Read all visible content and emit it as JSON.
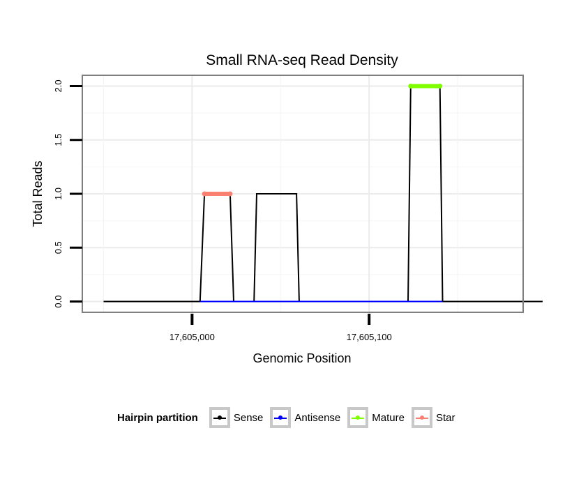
{
  "chart_data": {
    "type": "line",
    "title": "Small RNA-seq Read Density",
    "xlabel": "Genomic Position",
    "ylabel": "Total Reads",
    "xlim": [
      17604938,
      17605187
    ],
    "ylim": [
      -0.1,
      2.1
    ],
    "x_ticks": [
      {
        "value": 17605000,
        "label": "17,605,000"
      },
      {
        "value": 17605100,
        "label": "17,605,100"
      }
    ],
    "y_ticks": [
      {
        "value": 0,
        "label": "0.0"
      },
      {
        "value": 0.5,
        "label": "0.5"
      },
      {
        "value": 1,
        "label": "1.0"
      },
      {
        "value": 1.5,
        "label": "1.5"
      },
      {
        "value": 2,
        "label": "2.0"
      }
    ],
    "grid": true,
    "series": [
      {
        "name": "Sense",
        "color": "#000000",
        "x": [
          17604950,
          17605004.5,
          17605007,
          17605021.5,
          17605023.5,
          17605035,
          17605036.5,
          17605059,
          17605060.5,
          17605122,
          17605123.5,
          17605140,
          17605141.5,
          17605198
        ],
        "y": [
          0,
          0,
          1,
          1,
          0,
          0,
          1,
          1,
          0,
          0,
          2,
          2,
          0,
          0
        ]
      },
      {
        "name": "Antisense",
        "color": "#0000ff",
        "x": [
          17605004.5,
          17605021.5,
          17605035,
          17605059,
          17605122,
          17605141.5
        ],
        "y": [
          0,
          0,
          0,
          0,
          0,
          0
        ]
      },
      {
        "name": "Mature",
        "color": "#7fff00",
        "x": [
          17605123.5,
          17605140
        ],
        "y": [
          2,
          2
        ]
      },
      {
        "name": "Star",
        "color": "#fa8072",
        "x": [
          17605007,
          17605021.5
        ],
        "y": [
          1,
          1
        ]
      }
    ],
    "legend": {
      "title": "Hairpin partition",
      "position": "bottom",
      "entries": [
        {
          "label": "Sense",
          "color": "#000000"
        },
        {
          "label": "Antisense",
          "color": "#0000ff"
        },
        {
          "label": "Mature",
          "color": "#7fff00"
        },
        {
          "label": "Star",
          "color": "#fa8072"
        }
      ]
    }
  }
}
